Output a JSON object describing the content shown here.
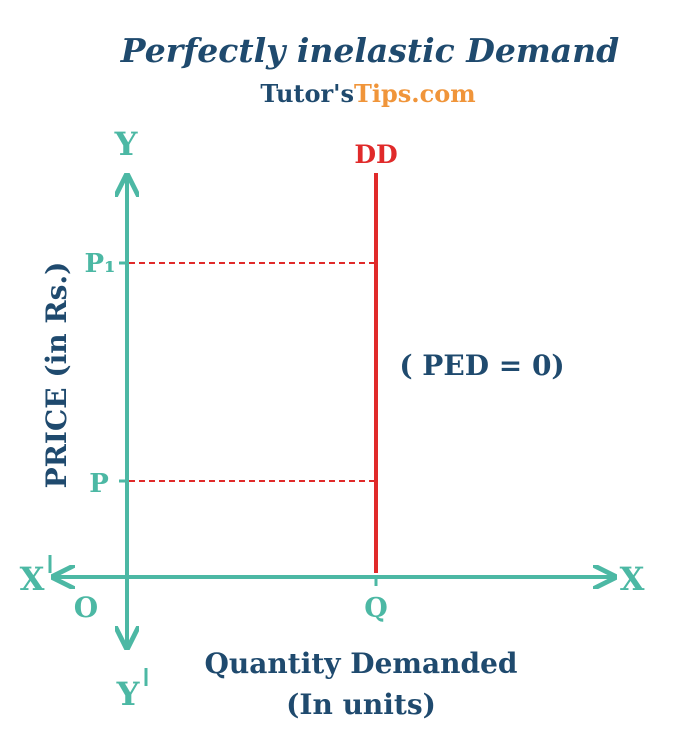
{
  "title": "Perfectly inelastic Demand",
  "brand": {
    "part1": "Tutor's",
    "part2": "Tips.com",
    "color1": "#1f4a6e",
    "color2": "#f0953a"
  },
  "axes": {
    "y_top": "Y",
    "y_bottom": "Y",
    "x_right": "X",
    "x_left": "X",
    "origin": "O",
    "y_label": "PRICE (in Rs.)",
    "x_label_line1": "Quantity Demanded",
    "x_label_line2": "(In units)"
  },
  "ticks": {
    "p1": "P₁",
    "p": "P",
    "q": "Q"
  },
  "curve": {
    "name": "DD",
    "annotation": "( PED = 0)"
  },
  "colors": {
    "axis": "#4cb8a4",
    "curve": "#e02a2a",
    "text": "#1f4a6e"
  }
}
